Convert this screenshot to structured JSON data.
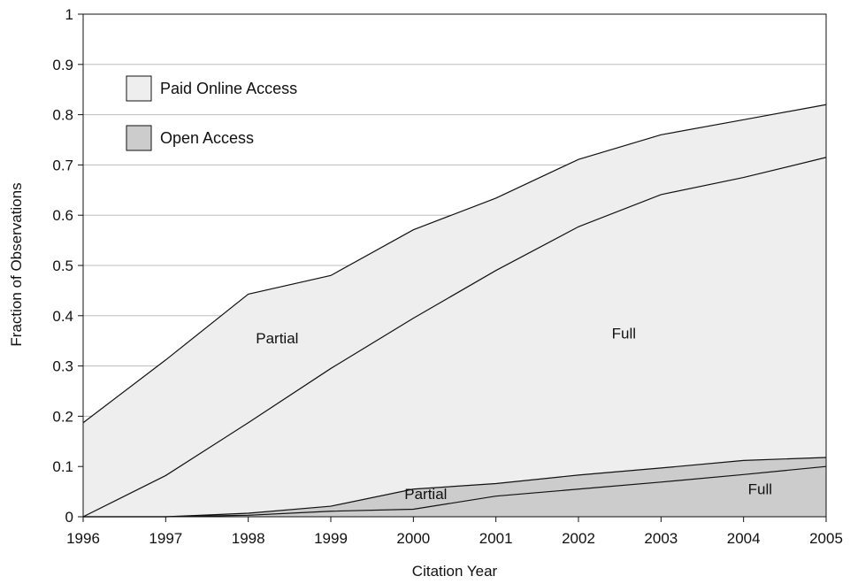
{
  "colors": {
    "paid_fill": "#eeeeee",
    "open_fill": "#cccccc",
    "line": "#111111",
    "grid": "#bdbdbd",
    "frame": "#111111"
  },
  "chart_data": {
    "type": "area",
    "xlabel": "Citation Year",
    "ylabel": "Fraction of Observations",
    "x": [
      1996,
      1997,
      1998,
      1999,
      2000,
      2001,
      2002,
      2003,
      2004,
      2005
    ],
    "xlim": [
      1996,
      2005
    ],
    "ylim": [
      0,
      1
    ],
    "yticks": [
      "0",
      "0.1",
      "0.2",
      "0.3",
      "0.4",
      "0.5",
      "0.6",
      "0.7",
      "0.8",
      "0.9",
      "1"
    ],
    "xticks": [
      "1996",
      "1997",
      "1998",
      "1999",
      "2000",
      "2001",
      "2002",
      "2003",
      "2004",
      "2005"
    ],
    "grid": "horizontal",
    "legend_position": "top-left",
    "legend": [
      {
        "label": "Paid Online Access",
        "fill": "#eeeeee"
      },
      {
        "label": "Open Access",
        "fill": "#cccccc"
      }
    ],
    "series": [
      {
        "group": "Paid Online Access",
        "component": "Partial",
        "values": [
          0.187,
          0.312,
          0.443,
          0.48,
          0.571,
          0.634,
          0.711,
          0.76,
          0.79,
          0.82
        ]
      },
      {
        "group": "Paid Online Access",
        "component": "Full",
        "values": [
          0.0,
          0.082,
          0.187,
          0.295,
          0.395,
          0.49,
          0.577,
          0.641,
          0.675,
          0.715
        ]
      },
      {
        "group": "Open Access",
        "component": "Partial",
        "values": [
          0.0,
          0.0,
          0.007,
          0.021,
          0.055,
          0.066,
          0.083,
          0.097,
          0.112,
          0.118
        ]
      },
      {
        "group": "Open Access",
        "component": "Full",
        "values": [
          0.0,
          0.0,
          0.003,
          0.011,
          0.015,
          0.041,
          0.055,
          0.069,
          0.084,
          0.1
        ]
      }
    ],
    "annotations": [
      {
        "text": "Partial",
        "x": 1998.35,
        "y": 0.345
      },
      {
        "text": "Full",
        "x": 2002.55,
        "y": 0.355
      },
      {
        "text": "Partial",
        "x": 2000.15,
        "y": 0.035
      },
      {
        "text": "Full",
        "x": 2004.2,
        "y": 0.045
      }
    ]
  }
}
